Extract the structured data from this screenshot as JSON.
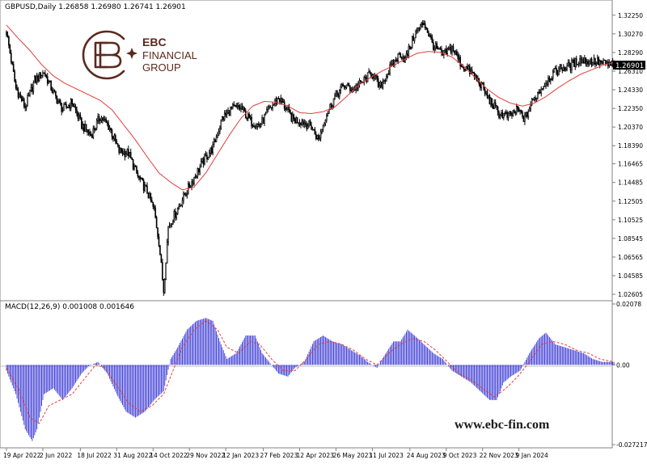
{
  "brand": {
    "name": "EBC",
    "line1": "FINANCIAL",
    "line2": "GROUP",
    "website": "www.ebc-fin.com",
    "color": "#5a2a1e"
  },
  "colors": {
    "candle": "#000000",
    "ma": "#e23b3b",
    "macd_hist": "#3b3bd6",
    "macd_signal": "#e23b3b",
    "grid": "#d0d0d0",
    "price_label_bg": "#000000",
    "price_label_fg": "#ffffff"
  },
  "chart_data": [
    {
      "type": "candlestick",
      "header": "GBPUSD,Daily  1.26858 1.26980 1.26741 1.26901",
      "current_price_label": "1.26901",
      "ylim": [
        1.0244,
        1.3352
      ],
      "yticks": [
        "1.32250",
        "1.30270",
        "1.28290",
        "1.26310",
        "1.24330",
        "1.22350",
        "1.20370",
        "1.18390",
        "1.16465",
        "1.14485",
        "1.12505",
        "1.10525",
        "1.08545",
        "1.06565",
        "1.04585",
        "1.02605"
      ],
      "series": [
        {
          "name": "price_close",
          "points": [
            [
              0,
              1.305
            ],
            [
              8,
              1.245
            ],
            [
              16,
              1.225
            ],
            [
              24,
              1.253
            ],
            [
              32,
              1.262
            ],
            [
              40,
              1.24
            ],
            [
              48,
              1.222
            ],
            [
              56,
              1.23
            ],
            [
              64,
              1.206
            ],
            [
              72,
              1.195
            ],
            [
              80,
              1.215
            ],
            [
              88,
              1.203
            ],
            [
              96,
              1.178
            ],
            [
              104,
              1.176
            ],
            [
              112,
              1.151
            ],
            [
              120,
              1.135
            ],
            [
              126,
              1.115
            ],
            [
              130,
              1.082
            ],
            [
              134,
              1.03
            ],
            [
              138,
              1.098
            ],
            [
              144,
              1.112
            ],
            [
              152,
              1.132
            ],
            [
              160,
              1.15
            ],
            [
              168,
              1.168
            ],
            [
              176,
              1.182
            ],
            [
              184,
              1.213
            ],
            [
              192,
              1.223
            ],
            [
              200,
              1.224
            ],
            [
              208,
              1.21
            ],
            [
              216,
              1.205
            ],
            [
              224,
              1.222
            ],
            [
              232,
              1.235
            ],
            [
              236,
              1.228
            ],
            [
              244,
              1.212
            ],
            [
              252,
              1.21
            ],
            [
              260,
              1.204
            ],
            [
              266,
              1.19
            ],
            [
              272,
              1.215
            ],
            [
              280,
              1.236
            ],
            [
              288,
              1.248
            ],
            [
              296,
              1.244
            ],
            [
              304,
              1.252
            ],
            [
              312,
              1.262
            ],
            [
              318,
              1.245
            ],
            [
              328,
              1.268
            ],
            [
              336,
              1.282
            ],
            [
              340,
              1.275
            ],
            [
              348,
              1.302
            ],
            [
              356,
              1.315
            ],
            [
              364,
              1.29
            ],
            [
              372,
              1.28
            ],
            [
              380,
              1.288
            ],
            [
              388,
              1.27
            ],
            [
              396,
              1.262
            ],
            [
              404,
              1.25
            ],
            [
              412,
              1.232
            ],
            [
              420,
              1.218
            ],
            [
              428,
              1.215
            ],
            [
              436,
              1.222
            ],
            [
              442,
              1.212
            ],
            [
              448,
              1.23
            ],
            [
              456,
              1.245
            ],
            [
              464,
              1.258
            ],
            [
              472,
              1.266
            ],
            [
              480,
              1.268
            ],
            [
              488,
              1.275
            ],
            [
              496,
              1.274
            ],
            [
              504,
              1.273
            ],
            [
              512,
              1.27
            ],
            [
              518,
              1.27
            ]
          ]
        },
        {
          "name": "moving_average",
          "points": [
            [
              0,
              1.312
            ],
            [
              10,
              1.298
            ],
            [
              20,
              1.285
            ],
            [
              30,
              1.27
            ],
            [
              40,
              1.258
            ],
            [
              50,
              1.25
            ],
            [
              60,
              1.244
            ],
            [
              70,
              1.238
            ],
            [
              80,
              1.232
            ],
            [
              90,
              1.222
            ],
            [
              100,
              1.206
            ],
            [
              110,
              1.19
            ],
            [
              120,
              1.172
            ],
            [
              130,
              1.155
            ],
            [
              140,
              1.145
            ],
            [
              150,
              1.137
            ],
            [
              160,
              1.14
            ],
            [
              170,
              1.155
            ],
            [
              180,
              1.175
            ],
            [
              190,
              1.195
            ],
            [
              200,
              1.213
            ],
            [
              210,
              1.226
            ],
            [
              220,
              1.231
            ],
            [
              230,
              1.23
            ],
            [
              240,
              1.226
            ],
            [
              250,
              1.219
            ],
            [
              260,
              1.218
            ],
            [
              270,
              1.22
            ],
            [
              280,
              1.225
            ],
            [
              290,
              1.236
            ],
            [
              300,
              1.248
            ],
            [
              310,
              1.256
            ],
            [
              320,
              1.263
            ],
            [
              330,
              1.269
            ],
            [
              340,
              1.276
            ],
            [
              350,
              1.282
            ],
            [
              360,
              1.284
            ],
            [
              370,
              1.283
            ],
            [
              380,
              1.278
            ],
            [
              390,
              1.268
            ],
            [
              400,
              1.256
            ],
            [
              410,
              1.244
            ],
            [
              420,
              1.235
            ],
            [
              430,
              1.229
            ],
            [
              440,
              1.226
            ],
            [
              450,
              1.229
            ],
            [
              460,
              1.236
            ],
            [
              470,
              1.245
            ],
            [
              480,
              1.253
            ],
            [
              490,
              1.26
            ],
            [
              500,
              1.265
            ],
            [
              510,
              1.27
            ],
            [
              518,
              1.272
            ]
          ]
        }
      ]
    },
    {
      "type": "bar",
      "header": "MACD(12,26,9) 0.001008 0.001646",
      "ylim": [
        -0.027217,
        0.02078
      ],
      "yticks": [
        "0.02078",
        "0.00",
        "-0.027217"
      ],
      "series": [
        {
          "name": "histogram",
          "points": [
            [
              0,
              -0.002
            ],
            [
              8,
              -0.01
            ],
            [
              16,
              -0.022
            ],
            [
              22,
              -0.026
            ],
            [
              26,
              -0.022
            ],
            [
              32,
              -0.01
            ],
            [
              40,
              -0.008
            ],
            [
              48,
              -0.012
            ],
            [
              56,
              -0.008
            ],
            [
              64,
              -0.003
            ],
            [
              70,
              -0.0005
            ],
            [
              78,
              0.001
            ],
            [
              86,
              -0.003
            ],
            [
              94,
              -0.01
            ],
            [
              102,
              -0.016
            ],
            [
              110,
              -0.018
            ],
            [
              118,
              -0.016
            ],
            [
              126,
              -0.012
            ],
            [
              134,
              -0.009
            ],
            [
              140,
              0.002
            ],
            [
              146,
              0.006
            ],
            [
              154,
              0.012
            ],
            [
              162,
              0.015
            ],
            [
              170,
              0.016
            ],
            [
              176,
              0.015
            ],
            [
              182,
              0.008
            ],
            [
              188,
              0.002
            ],
            [
              196,
              0.004
            ],
            [
              204,
              0.01
            ],
            [
              212,
              0.01
            ],
            [
              218,
              0.004
            ],
            [
              224,
              0.001
            ],
            [
              232,
              -0.003
            ],
            [
              240,
              -0.004
            ],
            [
              246,
              -0.001
            ],
            [
              254,
              0.001
            ],
            [
              262,
              0.008
            ],
            [
              270,
              0.01
            ],
            [
              278,
              0.008
            ],
            [
              286,
              0.007
            ],
            [
              294,
              0.005
            ],
            [
              302,
              0.003
            ],
            [
              308,
              0.001
            ],
            [
              316,
              -0.001
            ],
            [
              322,
              0.003
            ],
            [
              330,
              0.008
            ],
            [
              336,
              0.008
            ],
            [
              342,
              0.012
            ],
            [
              348,
              0.01
            ],
            [
              356,
              0.007
            ],
            [
              364,
              0.004
            ],
            [
              372,
              0.002
            ],
            [
              380,
              -0.002
            ],
            [
              388,
              -0.004
            ],
            [
              396,
              -0.006
            ],
            [
              404,
              -0.009
            ],
            [
              412,
              -0.012
            ],
            [
              418,
              -0.012
            ],
            [
              424,
              -0.006
            ],
            [
              430,
              -0.004
            ],
            [
              438,
              -0.002
            ],
            [
              446,
              0.004
            ],
            [
              454,
              0.009
            ],
            [
              460,
              0.011
            ],
            [
              468,
              0.007
            ],
            [
              476,
              0.006
            ],
            [
              484,
              0.005
            ],
            [
              492,
              0.004
            ],
            [
              500,
              0.002
            ],
            [
              508,
              0.001
            ],
            [
              518,
              0.001
            ]
          ]
        },
        {
          "name": "signal",
          "points": [
            [
              0,
              -0.001
            ],
            [
              10,
              -0.008
            ],
            [
              20,
              -0.018
            ],
            [
              28,
              -0.02
            ],
            [
              36,
              -0.014
            ],
            [
              46,
              -0.012
            ],
            [
              56,
              -0.01
            ],
            [
              66,
              -0.005
            ],
            [
              76,
              0.0
            ],
            [
              84,
              -0.001
            ],
            [
              94,
              -0.007
            ],
            [
              104,
              -0.013
            ],
            [
              114,
              -0.016
            ],
            [
              124,
              -0.014
            ],
            [
              134,
              -0.01
            ],
            [
              142,
              -0.002
            ],
            [
              150,
              0.006
            ],
            [
              160,
              0.012
            ],
            [
              170,
              0.015
            ],
            [
              180,
              0.012
            ],
            [
              188,
              0.006
            ],
            [
              198,
              0.004
            ],
            [
              208,
              0.008
            ],
            [
              216,
              0.007
            ],
            [
              226,
              0.002
            ],
            [
              236,
              -0.002
            ],
            [
              246,
              -0.002
            ],
            [
              256,
              0.002
            ],
            [
              266,
              0.007
            ],
            [
              276,
              0.008
            ],
            [
              286,
              0.007
            ],
            [
              296,
              0.005
            ],
            [
              306,
              0.002
            ],
            [
              316,
              0.0
            ],
            [
              326,
              0.004
            ],
            [
              336,
              0.007
            ],
            [
              346,
              0.009
            ],
            [
              356,
              0.008
            ],
            [
              366,
              0.005
            ],
            [
              376,
              0.001
            ],
            [
              386,
              -0.003
            ],
            [
              396,
              -0.005
            ],
            [
              406,
              -0.008
            ],
            [
              416,
              -0.011
            ],
            [
              426,
              -0.008
            ],
            [
              436,
              -0.004
            ],
            [
              446,
              0.001
            ],
            [
              456,
              0.007
            ],
            [
              466,
              0.008
            ],
            [
              476,
              0.007
            ],
            [
              486,
              0.005
            ],
            [
              496,
              0.004
            ],
            [
              506,
              0.002
            ],
            [
              518,
              0.001
            ]
          ]
        }
      ]
    }
  ],
  "xaxis": {
    "labels": [
      "19 Apr 2022",
      "2 Jun 2022",
      "18 Jul 2022",
      "31 Aug 2022",
      "14 Oct 2022",
      "29 Nov 2022",
      "12 Jan 2023",
      "27 Feb 2023",
      "12 Apr 2023",
      "26 May 2023",
      "11 Jul 2023",
      "24 Aug 2023",
      "9 Oct 2023",
      "22 Nov 2023",
      "9 Jan 2024"
    ],
    "positions": [
      0,
      31,
      63,
      94,
      125,
      156,
      187,
      219,
      250,
      281,
      312,
      344,
      375,
      406,
      437
    ]
  }
}
